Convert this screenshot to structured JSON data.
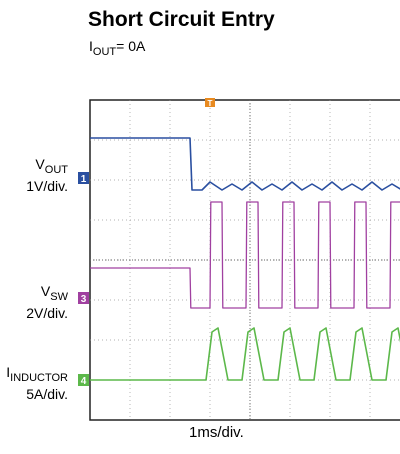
{
  "chart_data": {
    "type": "line",
    "title": "Short Circuit Entry",
    "subtitle": {
      "prefix": "I",
      "sub": "OUT",
      "suffix": "= 0A"
    },
    "xlabel": "1ms/div.",
    "grid": true,
    "trigger_marker": "T",
    "series": [
      {
        "name_main": "V",
        "name_sub": "OUT",
        "scale": "1V/div.",
        "marker": "1",
        "color": "#2a4fa0",
        "x": [
          0,
          2.5,
          2.55,
          2.8,
          3.0,
          3.3,
          3.55,
          3.8,
          4.05,
          4.3,
          4.55,
          4.8,
          5.05,
          5.3,
          5.55,
          5.8,
          6.05,
          6.3,
          6.55,
          6.8,
          7.05,
          7.3,
          7.55,
          7.8,
          8.05,
          8.3,
          8.5
        ],
        "y": [
          1.0,
          1.0,
          -0.3,
          -0.3,
          -0.1,
          -0.3,
          -0.15,
          -0.3,
          -0.1,
          -0.3,
          -0.15,
          -0.3,
          -0.1,
          -0.3,
          -0.15,
          -0.3,
          -0.1,
          -0.3,
          -0.15,
          -0.3,
          -0.1,
          -0.3,
          -0.15,
          -0.3,
          -0.1,
          -0.3,
          -0.2
        ]
      },
      {
        "name_main": "V",
        "name_sub": "SW",
        "scale": "2V/div.",
        "marker": "3",
        "color": "#a040a0",
        "x": [
          0,
          2.5,
          2.52,
          3.0,
          3.02,
          3.3,
          3.32,
          3.9,
          3.92,
          4.2,
          4.22,
          4.8,
          4.82,
          5.1,
          5.12,
          5.7,
          5.72,
          6.0,
          6.02,
          6.6,
          6.62,
          6.9,
          6.92,
          7.5,
          7.52,
          7.8,
          7.82,
          8.5
        ],
        "y": [
          0.75,
          0.75,
          -0.25,
          -0.25,
          2.4,
          2.4,
          -0.25,
          -0.25,
          2.4,
          2.4,
          -0.25,
          -0.25,
          2.4,
          2.4,
          -0.25,
          -0.25,
          2.4,
          2.4,
          -0.25,
          -0.25,
          2.4,
          2.4,
          -0.25,
          -0.25,
          2.4,
          2.4,
          -0.25,
          -0.25
        ]
      },
      {
        "name_main": "I",
        "name_sub": "INDUCTOR",
        "scale": "5A/div.",
        "marker": "4",
        "color": "#5cb84a",
        "x": [
          0,
          2.5,
          2.55,
          2.9,
          3.05,
          3.2,
          3.45,
          3.8,
          3.95,
          4.1,
          4.35,
          4.7,
          4.85,
          5.0,
          5.25,
          5.6,
          5.75,
          5.9,
          6.15,
          6.5,
          6.65,
          6.8,
          7.05,
          7.4,
          7.55,
          7.7,
          7.95,
          8.5
        ],
        "y": [
          0,
          0,
          0,
          0,
          1.2,
          1.3,
          0,
          0,
          1.2,
          1.3,
          0,
          0,
          1.2,
          1.3,
          0,
          0,
          1.2,
          1.3,
          0,
          0,
          1.2,
          1.3,
          0,
          0,
          1.2,
          1.3,
          0,
          0
        ]
      }
    ]
  }
}
